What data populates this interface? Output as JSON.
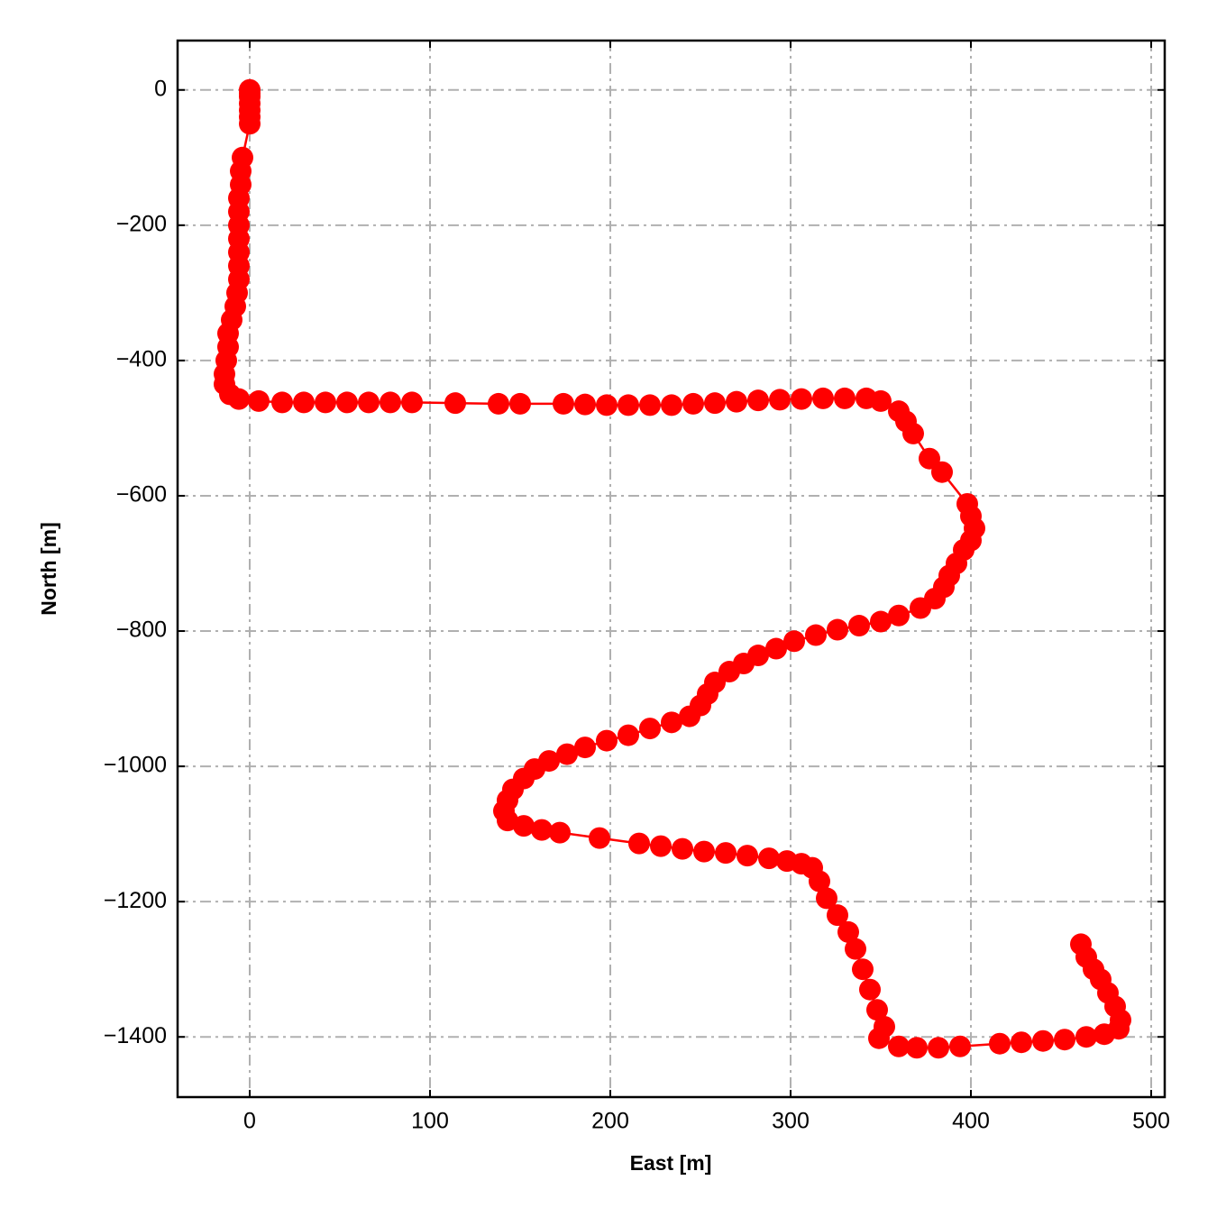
{
  "chart_data": {
    "type": "line",
    "xlabel": "East [m]",
    "ylabel": "North [m]",
    "color": "#ff0000",
    "grid": true,
    "xlim": [
      -40,
      507.5
    ],
    "ylim": [
      -1489,
      73
    ],
    "xticks": [
      0,
      100,
      200,
      300,
      400,
      500
    ],
    "yticks": [
      0,
      {
        "value": -200,
        "label": "−200"
      },
      {
        "value": -400,
        "label": "−400"
      },
      {
        "value": -600,
        "label": "−600"
      },
      {
        "value": -800,
        "label": "−800"
      },
      {
        "value": -1000,
        "label": "−1000"
      },
      {
        "value": -1200,
        "label": "−1200"
      },
      {
        "value": -1400,
        "label": "−1400"
      }
    ],
    "x": [
      0,
      0,
      0,
      0,
      0,
      0,
      0,
      -4,
      -5,
      -5,
      -6,
      -6,
      -6,
      -6,
      -6,
      -6,
      -6,
      -7,
      -8,
      -10,
      -12,
      -12,
      -13,
      -14,
      -14,
      -11,
      -6,
      5,
      18,
      30,
      42,
      54,
      66,
      78,
      90,
      114,
      138,
      150,
      174,
      186,
      198,
      210,
      222,
      234,
      246,
      258,
      270,
      282,
      294,
      306,
      318,
      330,
      342,
      350,
      360,
      364,
      368,
      377,
      384,
      398,
      400,
      402,
      400,
      396,
      392,
      388,
      385,
      380,
      372,
      360,
      350,
      338,
      326,
      314,
      302,
      292,
      282,
      274,
      266,
      258,
      254,
      250,
      244,
      234,
      222,
      210,
      198,
      186,
      176,
      166,
      158,
      152,
      146,
      143,
      141,
      143,
      152,
      162,
      172,
      194,
      216,
      228,
      240,
      252,
      264,
      276,
      288,
      298,
      306,
      312,
      316,
      320,
      326,
      332,
      336,
      340,
      344,
      348,
      352,
      349,
      360,
      370,
      382,
      394,
      416,
      428,
      440,
      452,
      464,
      474,
      482,
      483,
      480,
      476,
      472,
      468,
      464,
      461
    ],
    "values": [
      0,
      -5,
      -10,
      -20,
      -30,
      -40,
      -50,
      -100,
      -120,
      -140,
      -160,
      -180,
      -200,
      -220,
      -240,
      -260,
      -280,
      -300,
      -320,
      -340,
      -360,
      -380,
      -400,
      -420,
      -435,
      -450,
      -457,
      -460,
      -462,
      -462,
      -462,
      -462,
      -462,
      -462,
      -462,
      -463,
      -464,
      -464,
      -464,
      -465,
      -466,
      -466,
      -466,
      -466,
      -464,
      -463,
      -461,
      -459,
      -458,
      -457,
      -456,
      -456,
      -456,
      -460,
      -475,
      -490,
      -508,
      -545,
      -565,
      -612,
      -630,
      -648,
      -666,
      -680,
      -700,
      -718,
      -735,
      -752,
      -766,
      -777,
      -786,
      -792,
      -798,
      -806,
      -815,
      -826,
      -836,
      -848,
      -860,
      -876,
      -893,
      -910,
      -926,
      -935,
      -944,
      -954,
      -962,
      -972,
      -982,
      -992,
      -1004,
      -1018,
      -1034,
      -1050,
      -1066,
      -1080,
      -1088,
      -1094,
      -1098,
      -1106,
      -1114,
      -1118,
      -1122,
      -1126,
      -1128,
      -1132,
      -1136,
      -1140,
      -1144,
      -1150,
      -1170,
      -1195,
      -1220,
      -1245,
      -1270,
      -1300,
      -1330,
      -1360,
      -1385,
      -1402,
      -1414,
      -1416,
      -1416,
      -1414,
      -1410,
      -1408,
      -1406,
      -1404,
      -1400,
      -1396,
      -1388,
      -1375,
      -1355,
      -1335,
      -1315,
      -1300,
      -1282,
      -1263
    ]
  }
}
